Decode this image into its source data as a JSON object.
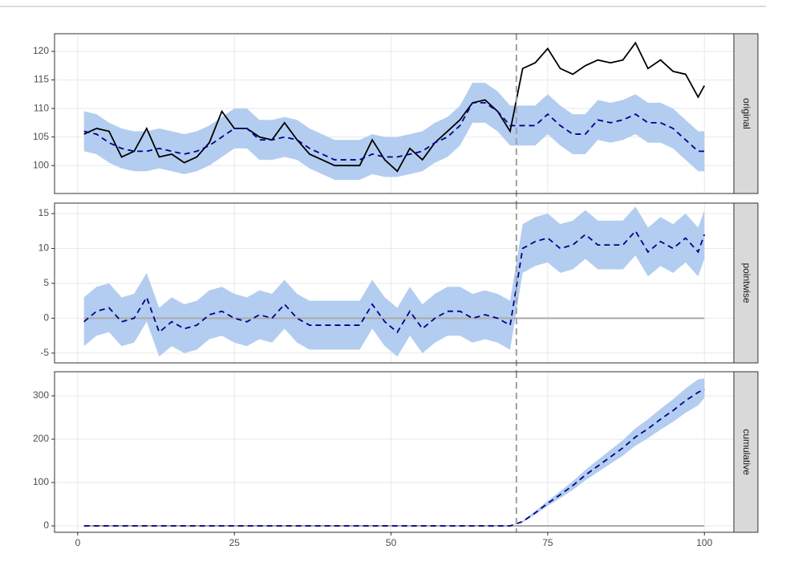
{
  "chart_data": [
    {
      "type": "line",
      "strip": "original",
      "x": [
        1,
        3,
        5,
        7,
        9,
        11,
        13,
        15,
        17,
        19,
        21,
        23,
        25,
        27,
        29,
        31,
        33,
        35,
        37,
        39,
        41,
        43,
        45,
        47,
        49,
        51,
        53,
        55,
        57,
        59,
        61,
        63,
        65,
        67,
        69,
        71,
        73,
        75,
        77,
        79,
        81,
        83,
        85,
        87,
        89,
        91,
        93,
        95,
        97,
        99,
        100
      ],
      "xlim": [
        -3.7,
        104.7
      ],
      "ylim": [
        95.1,
        123.1
      ],
      "yticks": [
        100,
        105,
        110,
        115,
        120
      ],
      "grid": true,
      "vline": 70,
      "band": {
        "color": "#b3cdf0",
        "lower": [
          102.5,
          102,
          100.5,
          99.5,
          99,
          99,
          99.5,
          99,
          98.5,
          99,
          100,
          101.5,
          103,
          103,
          101,
          101,
          101.5,
          101,
          99.5,
          98.5,
          97.5,
          97.5,
          97.5,
          98.5,
          98,
          98,
          98.5,
          99,
          100.5,
          101.5,
          103.5,
          107.5,
          107.5,
          106,
          103.5,
          103.5,
          103.5,
          105.5,
          103.5,
          102,
          102,
          104.5,
          104,
          104.5,
          105.5,
          104,
          104,
          103,
          101,
          99,
          99
        ],
        "upper": [
          109.5,
          109,
          107.5,
          106.5,
          106,
          106,
          106.5,
          106,
          105.5,
          106,
          107,
          108.5,
          110,
          110,
          108,
          108,
          108.5,
          108,
          106.5,
          105.5,
          104.5,
          104.5,
          104.5,
          105.5,
          105,
          105,
          105.5,
          106,
          107.5,
          108.5,
          110.5,
          114.5,
          114.5,
          113,
          110.5,
          110.5,
          110.5,
          112.5,
          110.5,
          109,
          109,
          111.5,
          111,
          111.5,
          112.5,
          111,
          111,
          110,
          108,
          106,
          106
        ]
      },
      "series": [
        {
          "color": "#000000",
          "dashed": false,
          "values": [
            105.5,
            106.5,
            106,
            101.5,
            102.5,
            106.5,
            101.5,
            102,
            100.5,
            101.5,
            104,
            109.5,
            106.5,
            106.5,
            105,
            104.5,
            107.5,
            104.5,
            102,
            101,
            100,
            100,
            100,
            104.5,
            101,
            99,
            103,
            101,
            104,
            106,
            108,
            111,
            111.5,
            109.5,
            106,
            117,
            118,
            120.5,
            117,
            116,
            117.5,
            118.5,
            118,
            118.5,
            121.5,
            117,
            118.5,
            116.5,
            116,
            112,
            114
          ]
        },
        {
          "color": "#00008b",
          "dashed": true,
          "values": [
            106,
            105.5,
            104,
            103,
            102.5,
            102.5,
            103,
            102.5,
            102,
            102.5,
            103.5,
            105,
            106.5,
            106.5,
            104.5,
            104.5,
            105,
            104.5,
            103,
            102,
            101,
            101,
            101,
            102,
            101.5,
            101.5,
            102,
            102.5,
            104,
            105,
            107,
            111,
            111,
            109.5,
            107,
            107,
            107,
            109,
            107,
            105.5,
            105.5,
            108,
            107.5,
            108,
            109,
            107.5,
            107.5,
            106.5,
            104.5,
            102.5,
            102.5
          ]
        }
      ]
    },
    {
      "type": "line",
      "strip": "pointwise",
      "x": [
        1,
        3,
        5,
        7,
        9,
        11,
        13,
        15,
        17,
        19,
        21,
        23,
        25,
        27,
        29,
        31,
        33,
        35,
        37,
        39,
        41,
        43,
        45,
        47,
        49,
        51,
        53,
        55,
        57,
        59,
        61,
        63,
        65,
        67,
        69,
        71,
        73,
        75,
        77,
        79,
        81,
        83,
        85,
        87,
        89,
        91,
        93,
        95,
        97,
        99,
        100
      ],
      "xlim": [
        -3.7,
        104.7
      ],
      "ylim": [
        -6.4,
        16.5
      ],
      "yticks": [
        -5,
        0,
        5,
        10,
        15
      ],
      "grid": true,
      "vline": 70,
      "hline": 0,
      "band": {
        "color": "#b3cdf0",
        "lower": [
          -4,
          -2.5,
          -2,
          -4,
          -3.5,
          -0.5,
          -5.5,
          -4,
          -5,
          -4.5,
          -3,
          -2.5,
          -3.5,
          -4,
          -3,
          -3.5,
          -1.5,
          -3.5,
          -4.5,
          -4.5,
          -4.5,
          -4.5,
          -4.5,
          -1.5,
          -4,
          -5.5,
          -2.5,
          -5,
          -3.5,
          -2.5,
          -2.5,
          -3.5,
          -3,
          -3.5,
          -4.5,
          6.5,
          7.5,
          8,
          6.5,
          7,
          8.5,
          7,
          7,
          7,
          9,
          6,
          7.5,
          6.5,
          8,
          6,
          8.5
        ],
        "upper": [
          3,
          4.5,
          5,
          3,
          3.5,
          6.5,
          1.5,
          3,
          2,
          2.5,
          4,
          4.5,
          3.5,
          3,
          4,
          3.5,
          5.5,
          3.5,
          2.5,
          2.5,
          2.5,
          2.5,
          2.5,
          5.5,
          3,
          1.5,
          4.5,
          2,
          3.5,
          4.5,
          4.5,
          3.5,
          4,
          3.5,
          2.5,
          13.5,
          14.5,
          15,
          13.5,
          14,
          15.5,
          14,
          14,
          14,
          16,
          13,
          14.5,
          13.5,
          15,
          13,
          15.5
        ]
      },
      "series": [
        {
          "color": "#00008b",
          "dashed": true,
          "values": [
            -0.5,
            1,
            1.5,
            -0.5,
            0,
            3,
            -2,
            -0.5,
            -1.5,
            -1,
            0.5,
            1,
            0,
            -0.5,
            0.5,
            0,
            2,
            0,
            -1,
            -1,
            -1,
            -1,
            -1,
            2,
            -0.5,
            -2,
            1,
            -1.5,
            0,
            1,
            1,
            0,
            0.5,
            0,
            -1,
            10,
            11,
            11.5,
            10,
            10.5,
            12,
            10.5,
            10.5,
            10.5,
            12.5,
            9.5,
            11,
            10,
            11.5,
            9.5,
            12
          ]
        }
      ]
    },
    {
      "type": "line",
      "strip": "cumulative",
      "x": [
        1,
        3,
        5,
        7,
        9,
        11,
        13,
        15,
        17,
        19,
        21,
        23,
        25,
        27,
        29,
        31,
        33,
        35,
        37,
        39,
        41,
        43,
        45,
        47,
        49,
        51,
        53,
        55,
        57,
        59,
        61,
        63,
        65,
        67,
        69,
        71,
        73,
        75,
        77,
        79,
        81,
        83,
        85,
        87,
        89,
        91,
        93,
        95,
        97,
        99,
        100
      ],
      "xlim": [
        -3.7,
        104.7
      ],
      "xticks": [
        0,
        25,
        50,
        75,
        100
      ],
      "ylim": [
        -14.8,
        355.6
      ],
      "yticks": [
        0,
        100,
        200,
        300
      ],
      "grid": true,
      "vline": 70,
      "hline": 0,
      "band": {
        "color": "#b3cdf0",
        "lower": [
          0,
          0,
          0,
          0,
          0,
          0,
          0,
          0,
          0,
          0,
          0,
          0,
          0,
          0,
          0,
          0,
          0,
          0,
          0,
          0,
          0,
          0,
          0,
          0,
          0,
          0,
          0,
          0,
          0,
          0,
          0,
          0,
          0,
          0,
          0,
          8,
          26,
          46,
          64,
          83,
          105,
          124,
          143,
          162,
          185,
          202,
          222,
          240,
          261,
          278,
          295
        ],
        "upper": [
          0,
          0,
          0,
          0,
          0,
          0,
          0,
          0,
          0,
          0,
          0,
          0,
          0,
          0,
          0,
          0,
          0,
          0,
          0,
          0,
          0,
          0,
          0,
          0,
          0,
          0,
          0,
          0,
          0,
          0,
          0,
          0,
          0,
          0,
          0,
          12,
          34,
          58,
          80,
          103,
          129,
          152,
          175,
          198,
          225,
          246,
          270,
          292,
          317,
          338,
          340
        ]
      },
      "series": [
        {
          "color": "#00008b",
          "dashed": true,
          "values": [
            0,
            0,
            0,
            0,
            0,
            0,
            0,
            0,
            0,
            0,
            0,
            0,
            0,
            0,
            0,
            0,
            0,
            0,
            0,
            0,
            0,
            0,
            0,
            0,
            0,
            0,
            0,
            0,
            0,
            0,
            0,
            0,
            0,
            0,
            0,
            10,
            30,
            52,
            72,
            93,
            117,
            138,
            159,
            180,
            205,
            224,
            246,
            266,
            289,
            308,
            315
          ]
        }
      ]
    }
  ]
}
